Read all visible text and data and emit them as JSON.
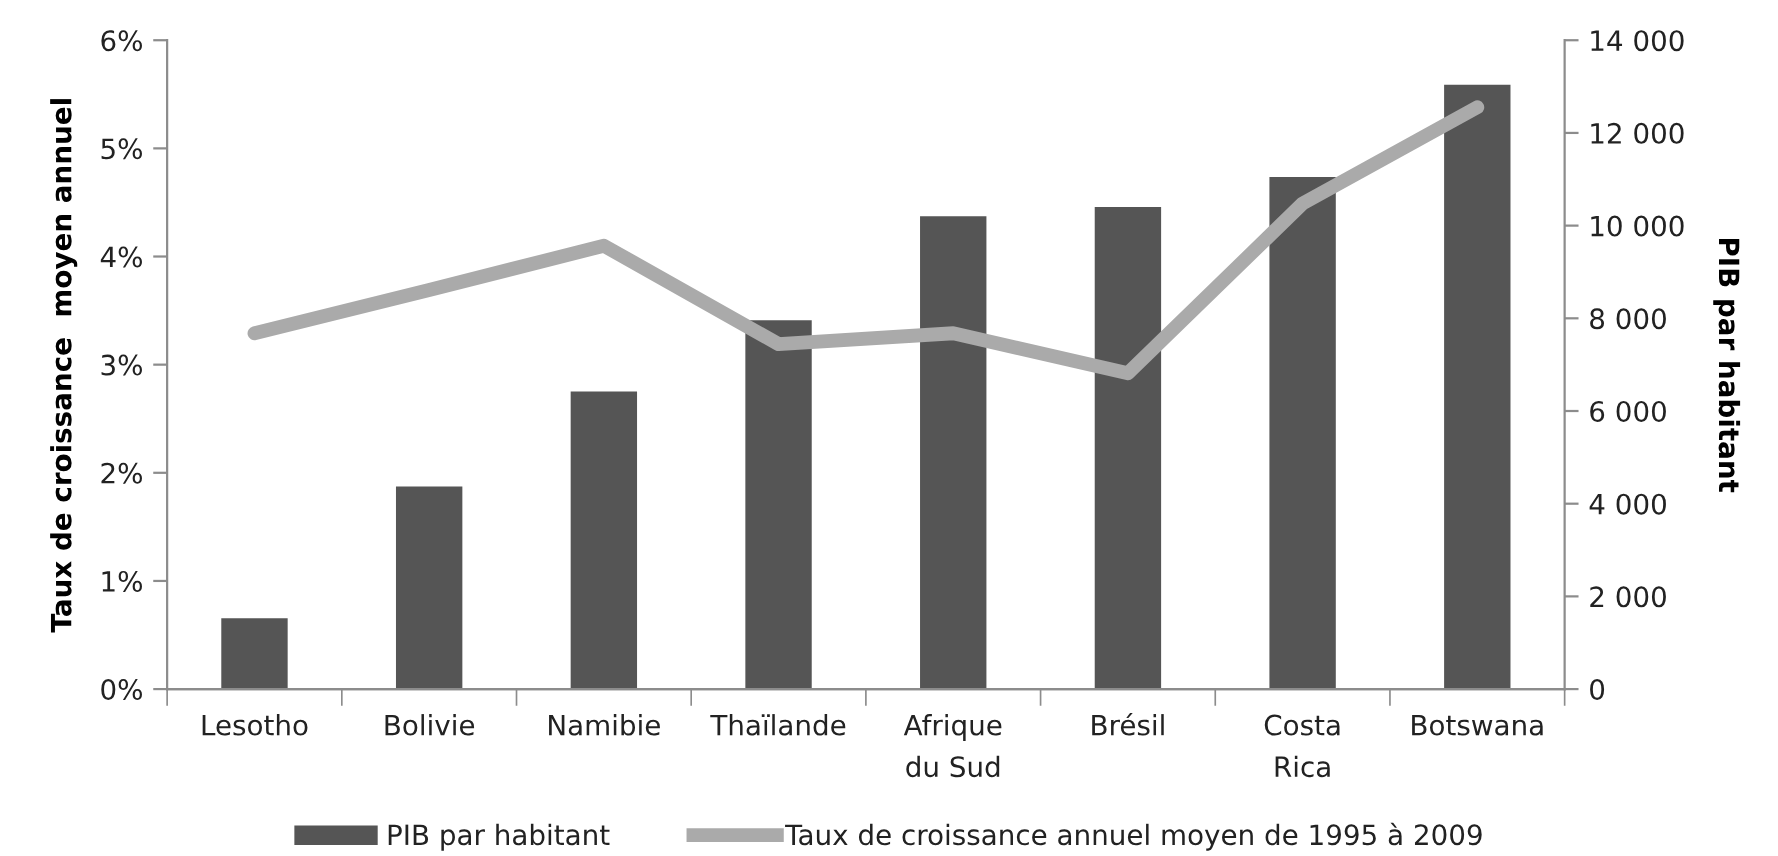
{
  "chart_data": {
    "type": "bar",
    "categories": [
      "Lesotho",
      "Bolivie",
      "Namibie",
      "Thaïlande",
      "Afrique\ndu Sud",
      "Brésil",
      "Costa\nRica",
      "Botswana"
    ],
    "series": [
      {
        "name": "PIB par habitant",
        "axis": "y2",
        "color": "#555555",
        "values": [
          1530,
          4370,
          6420,
          7960,
          10200,
          10400,
          11050,
          13040
        ]
      },
      {
        "name": "Taux de croissance annuel moyen de 1995 à 2009",
        "type": "line",
        "axis": "y",
        "color": "#aaaaaa",
        "values": [
          3.29,
          3.69,
          4.1,
          3.19,
          3.29,
          2.92,
          4.49,
          5.38
        ]
      }
    ],
    "ylabel": "Taux de croissance  moyen annuel",
    "y2label": "PIB par habitant",
    "ylim": [
      0,
      6
    ],
    "yticks": [
      {
        "value": 0,
        "label": "0%"
      },
      {
        "value": 1,
        "label": "1%"
      },
      {
        "value": 2,
        "label": "2%"
      },
      {
        "value": 3,
        "label": "3%"
      },
      {
        "value": 4,
        "label": "4%"
      },
      {
        "value": 5,
        "label": "5%"
      },
      {
        "value": 6,
        "label": "6%"
      }
    ],
    "y2lim": [
      0,
      14000
    ],
    "y2ticks": [
      0,
      {
        "value": 2000,
        "label": "2 000"
      },
      {
        "value": 4000,
        "label": "4 000"
      },
      {
        "value": 6000,
        "label": "6 000"
      },
      {
        "value": 8000,
        "label": "8 000"
      },
      {
        "value": 10000,
        "label": "10 000"
      },
      {
        "value": 12000,
        "label": "12 000"
      },
      {
        "value": 14000,
        "label": "14 000"
      }
    ],
    "legend": "bottom"
  }
}
